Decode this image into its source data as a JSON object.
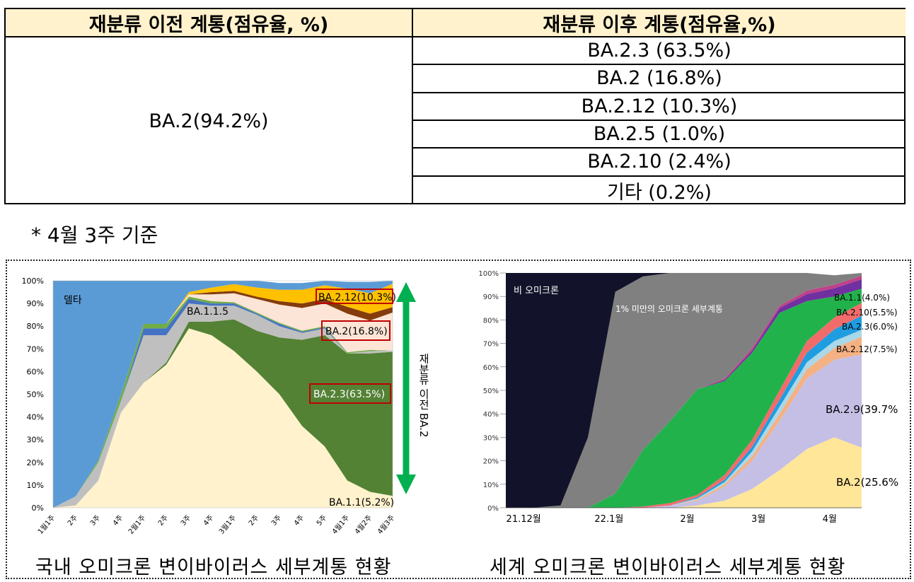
{
  "table": {
    "header_before": "재분류 이전 계통(점유율, %)",
    "header_after": "재분류 이후 계통(점유율,%)",
    "before_value": "BA.2(94.2%)",
    "after_rows": [
      "BA.2.3 (63.5%)",
      "BA.2 (16.8%)",
      "BA.2.12 (10.3%)",
      "BA.2.5 (1.0%)",
      "BA.2.10 (2.4%)",
      "기타 (0.2%)"
    ]
  },
  "note": "* 4월 3주 기준",
  "captions": {
    "domestic": "국내 오미크론 변이바이러스 세부계통 현황",
    "global": "세계 오미크론 변이바이러스 세부계통 현황"
  },
  "chart_data": [
    {
      "type": "area",
      "stacked": true,
      "x": [
        "1월1주",
        "2주",
        "3주",
        "4주",
        "2월1주",
        "2주",
        "3주",
        "4주",
        "3월1주",
        "2주",
        "3주",
        "4주",
        "5주",
        "4월1주",
        "4월2주",
        "4월3주"
      ],
      "ylim": [
        0,
        100
      ],
      "yticks": [
        "0%",
        "10%",
        "20%",
        "30%",
        "40%",
        "50%",
        "60%",
        "70%",
        "80%",
        "90%",
        "100%"
      ],
      "series": [
        {
          "name": "BA.1.1(5.2%)",
          "color": "#fff2cc",
          "values": [
            0,
            1,
            12,
            42,
            55,
            63,
            79,
            76,
            69,
            60,
            50,
            36,
            27,
            12,
            7,
            5.2
          ]
        },
        {
          "name": "BA.2.3(63.5%)",
          "color": "#548235",
          "values": [
            0,
            0,
            0,
            0,
            0,
            1,
            3,
            6,
            14,
            18,
            25,
            38,
            49,
            56,
            61,
            63.5
          ]
        },
        {
          "name": "",
          "color": "#bfbfbf",
          "values": [
            0,
            4,
            8,
            5,
            21,
            12,
            8,
            7,
            6,
            7,
            5,
            3,
            3,
            0,
            1,
            0.5
          ]
        },
        {
          "name": "",
          "color": "#4472c4",
          "values": [
            0,
            0,
            0,
            0,
            3,
            3,
            2,
            1,
            1,
            0.5,
            1,
            0.5,
            0.5,
            0,
            0,
            0
          ]
        },
        {
          "name": "",
          "color": "#70ad47",
          "values": [
            0,
            0,
            1,
            3,
            2,
            2,
            1,
            1,
            0.5,
            0.5,
            0.5,
            0.5,
            0.5,
            0.5,
            0.5,
            0
          ]
        },
        {
          "name": "BA.2(16.8%)",
          "color": "#fce4d6",
          "values": [
            0,
            0,
            0,
            0,
            0,
            0,
            1,
            3,
            4,
            6,
            8,
            10,
            10,
            17,
            13,
            16.8
          ]
        },
        {
          "name": "",
          "color": "#843c0c",
          "values": [
            0,
            0,
            0,
            0,
            0,
            0,
            0,
            1,
            1,
            1,
            1.5,
            2,
            2,
            3,
            3,
            2.4
          ]
        },
        {
          "name": "BA.2.12(10.3%)",
          "color": "#ffc000",
          "values": [
            0,
            0,
            0,
            0,
            0,
            0,
            1,
            2,
            3,
            4,
            5,
            6,
            6,
            8,
            9,
            10.3
          ]
        },
        {
          "name": "",
          "color": "#5b9bd5",
          "values": [
            100,
            95,
            79,
            50,
            19,
            19,
            5,
            3,
            2,
            3,
            3,
            3,
            2,
            3,
            5,
            1.3
          ]
        }
      ],
      "labels": {
        "delta": "델타",
        "ba115": "BA.1.1.5",
        "ba212": "BA.2.12(10.3%)",
        "ba2": "BA.2(16.8%)",
        "ba23": "BA.2.3(63.5%)",
        "ba11": "BA.1.1(5.2%)"
      },
      "arrow_label": "재분류 이전 BA.2"
    },
    {
      "type": "area",
      "stacked": true,
      "x_ticks": [
        "21.12월",
        "22.1월",
        "2월",
        "3월",
        "4월"
      ],
      "ylim": [
        0,
        100
      ],
      "yticks": [
        "0%",
        "10%",
        "20%",
        "30%",
        "40%",
        "50%",
        "60%",
        "70%",
        "80%",
        "90%",
        "100%"
      ],
      "series": [
        {
          "name": "BA.2(25.6%)",
          "color": "#ffe699",
          "values": [
            0,
            0,
            0,
            0,
            0,
            0,
            0,
            1,
            3,
            8,
            16,
            25,
            30,
            25.6
          ]
        },
        {
          "name": "BA.2.9(39.7%)",
          "color": "#c5bfe6",
          "values": [
            0,
            0,
            0,
            0,
            0,
            0,
            1,
            2,
            6,
            12,
            21,
            30,
            33,
            39.7
          ]
        },
        {
          "name": "BA.2.12(7.5%)",
          "color": "#f4b183",
          "values": [
            0,
            0,
            0,
            0,
            0,
            0,
            0,
            0.5,
            1,
            2,
            3,
            4,
            5,
            7.5
          ]
        },
        {
          "name": "",
          "color": "#a9d8e8",
          "values": [
            0,
            0,
            0,
            0,
            0,
            0,
            0,
            0.5,
            1,
            2,
            3,
            3,
            3,
            3
          ]
        },
        {
          "name": "BA.2.3(6.0%)",
          "color": "#1f9de0",
          "values": [
            0,
            0,
            0,
            0,
            0,
            0,
            0,
            0.5,
            1,
            2,
            3,
            4,
            5,
            6
          ]
        },
        {
          "name": "BA.2.10(5.5%)",
          "color": "#f26b6b",
          "values": [
            0,
            0,
            0,
            0,
            0,
            0.5,
            1,
            1,
            2,
            3,
            4,
            5,
            5,
            5.5
          ]
        },
        {
          "name": "",
          "color": "#22b24c",
          "values": [
            0,
            0,
            0,
            0,
            6,
            24,
            35,
            45,
            40,
            37,
            33,
            17,
            9,
            6
          ]
        },
        {
          "name": "BA.1.1(4.0%)",
          "color": "#7030a0",
          "values": [
            0,
            0,
            0,
            0,
            0,
            0,
            0,
            0,
            0.5,
            1,
            2,
            3,
            3.5,
            4
          ]
        },
        {
          "name": "",
          "color": "#c0418a",
          "values": [
            0,
            0,
            0,
            0,
            0,
            0,
            0,
            0,
            0.5,
            1,
            1,
            1.5,
            1.5,
            1.5
          ]
        },
        {
          "name": "1% 미만의 오미크론 세부계통",
          "color": "#808080",
          "values": [
            0,
            0,
            1,
            30,
            86,
            74,
            63,
            50,
            45,
            32,
            14,
            7.5,
            4,
            1.2
          ]
        },
        {
          "name": "비 오미크론",
          "color": "#12122a",
          "values": [
            100,
            100,
            99,
            70,
            8,
            1.5,
            0,
            0,
            0,
            0,
            0,
            0,
            0,
            0
          ]
        }
      ],
      "labels": {
        "non_omicron": "비 오미크론",
        "under1": "1% 미만의 오미크론 세부계통",
        "ba11": "BA.1.1(4.0%)",
        "ba210": "BA.2.10(5.5%)",
        "ba23": "BA.2.3(6.0%)",
        "ba212": "BA.2.12(7.5%)",
        "ba29": "BA.2.9(39.7%)",
        "ba2": "BA.2(25.6%)"
      }
    }
  ]
}
